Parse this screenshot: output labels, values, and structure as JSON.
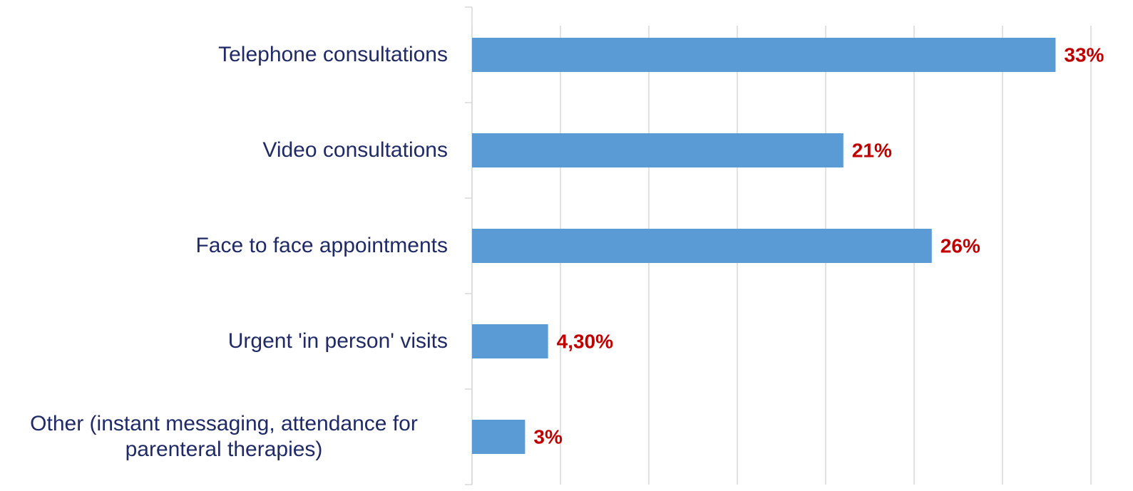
{
  "chart_data": {
    "type": "bar",
    "orientation": "horizontal",
    "categories": [
      "Telephone consultations",
      "Video consultations",
      "Face to face appointments",
      "Urgent  'in person' visits",
      "Other (instant messaging, attendance for parenteral therapies)"
    ],
    "values": [
      33,
      21,
      26,
      4.3,
      3
    ],
    "value_labels": [
      "33%",
      "21%",
      "26%",
      "4,30%",
      "3%"
    ],
    "color": "#5b9bd5",
    "xlim": [
      0,
      35
    ],
    "xticks": [
      0,
      5,
      10,
      15,
      20,
      25,
      30,
      35
    ],
    "grid": true
  }
}
